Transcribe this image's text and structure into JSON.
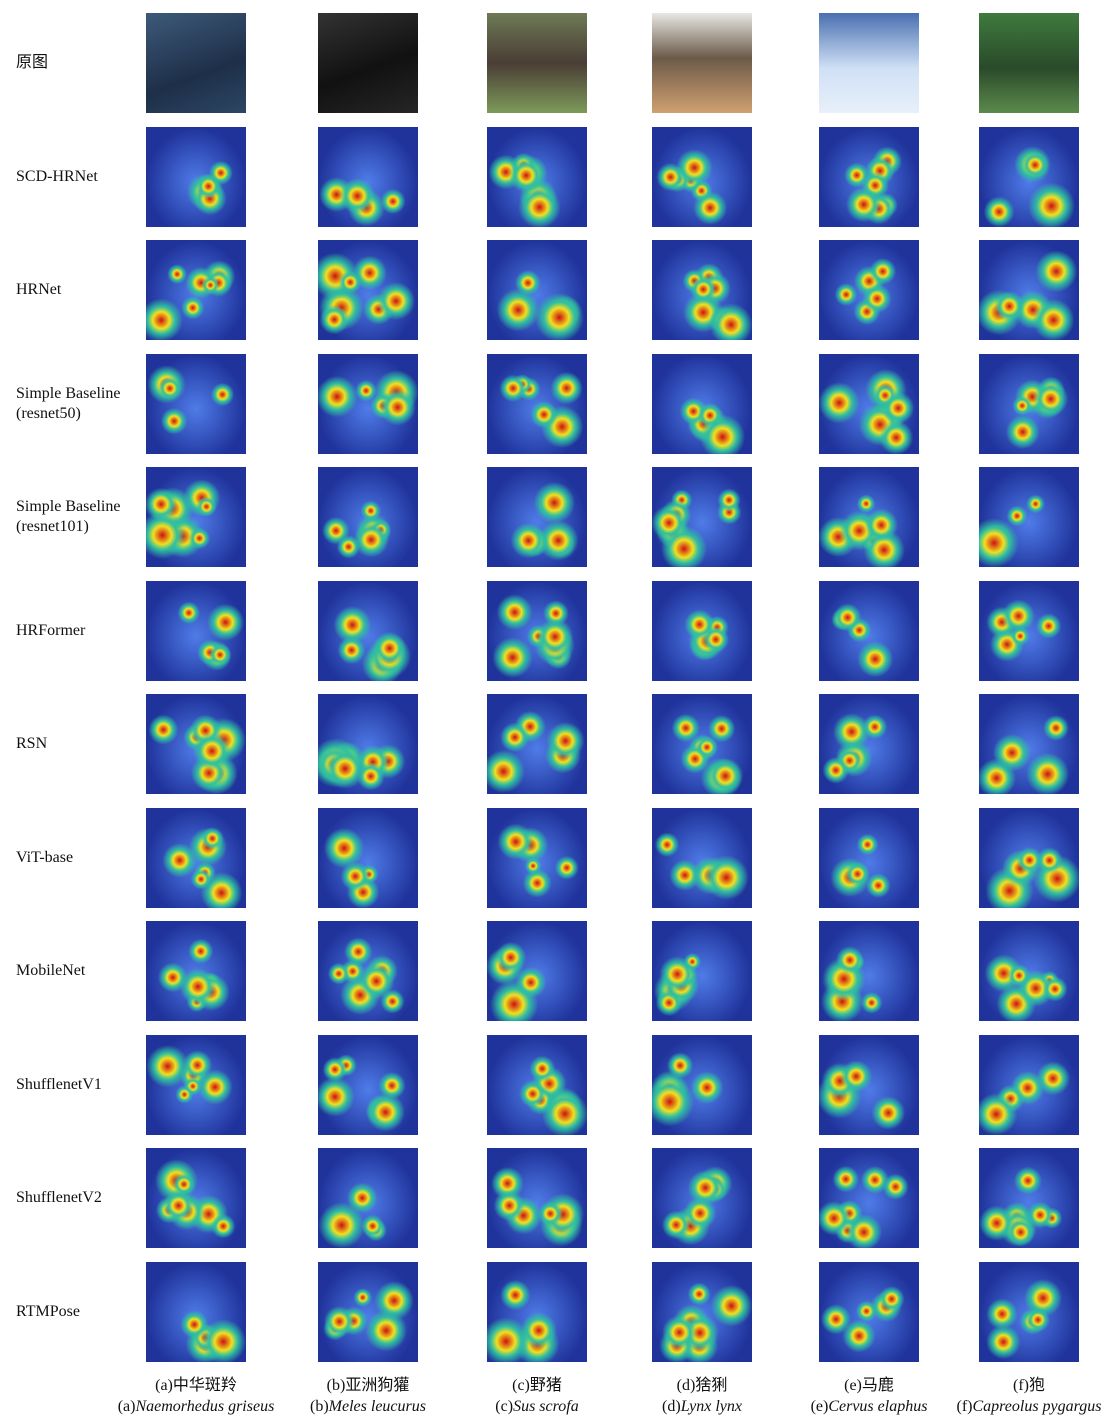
{
  "rows": [
    {
      "label": [
        "原图"
      ]
    },
    {
      "label": [
        "SCD-HRNet"
      ]
    },
    {
      "label": [
        "HRNet"
      ]
    },
    {
      "label": [
        "Simple Baseline",
        "(resnet50)"
      ]
    },
    {
      "label": [
        "Simple Baseline",
        "(resnet101)"
      ]
    },
    {
      "label": [
        "HRFormer"
      ]
    },
    {
      "label": [
        "RSN"
      ]
    },
    {
      "label": [
        "ViT-base"
      ]
    },
    {
      "label": [
        "MobileNet"
      ]
    },
    {
      "label": [
        "ShufflenetV1"
      ]
    },
    {
      "label": [
        "ShufflenetV2"
      ]
    },
    {
      "label": [
        "RTMPose"
      ]
    }
  ],
  "columns": [
    {
      "chinese_caption": "(a)中华斑羚",
      "latin_prefix": "(a)",
      "latin_name": "Naemorhedus griseus"
    },
    {
      "chinese_caption": "(b)亚洲狗獾",
      "latin_prefix": "(b)",
      "latin_name": "Meles leucurus"
    },
    {
      "chinese_caption": "(c)野猪",
      "latin_prefix": "(c)",
      "latin_name": "Sus scrofa"
    },
    {
      "chinese_caption": "(d)猞猁",
      "latin_prefix": "(d)",
      "latin_name": "Lynx lynx"
    },
    {
      "chinese_caption": "(e)马鹿",
      "latin_prefix": "(e)",
      "latin_name": "Cervus elaphus"
    },
    {
      "chinese_caption": "(f)狍",
      "latin_prefix": "(f)",
      "latin_name": "Capreolus pygargus"
    }
  ]
}
